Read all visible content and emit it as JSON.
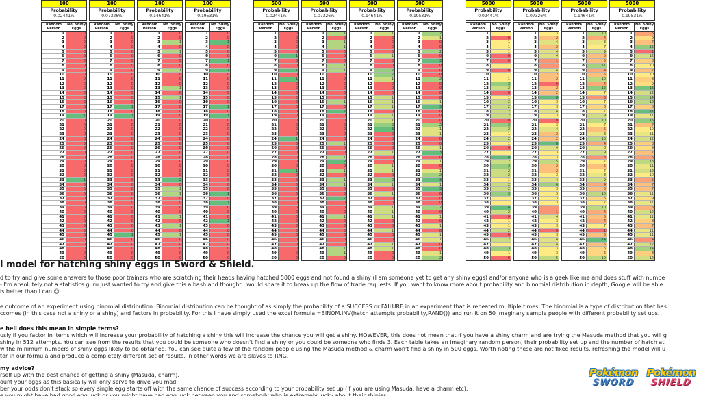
{
  "tables": {
    "probability_label": "Probability",
    "col_headers": [
      "Random Person",
      "No. Shiny Eggs"
    ],
    "scale_colors": {
      "low": "#F8696B",
      "mid": "#FFEB84",
      "high": "#63BE7B"
    },
    "list": [
      {
        "eggs": "100",
        "probability": "0.02441%",
        "values": [
          0,
          0,
          0,
          0,
          0,
          0,
          0,
          0,
          0,
          0,
          0,
          0,
          0,
          0,
          0,
          0,
          0,
          0,
          1,
          0,
          0,
          0,
          0,
          0,
          0,
          0,
          0,
          0,
          0,
          0,
          0,
          0,
          1,
          0,
          0,
          0,
          0,
          0,
          0,
          0,
          0,
          0,
          0,
          0,
          0,
          0,
          0,
          0,
          0,
          0
        ]
      },
      {
        "eggs": "100",
        "probability": "0.07326%",
        "values": [
          0,
          0,
          0,
          0,
          0,
          0,
          0,
          0,
          0,
          0,
          0,
          0,
          0,
          0,
          0,
          0,
          1,
          0,
          1,
          0,
          0,
          0,
          0,
          0,
          0,
          0,
          0,
          0,
          0,
          0,
          0,
          0,
          0,
          0,
          0,
          0,
          0,
          0,
          0,
          0,
          0,
          0,
          0,
          0,
          1,
          0,
          0,
          0,
          0,
          0
        ]
      },
      {
        "eggs": "100",
        "probability": "0.14641%",
        "values": [
          0,
          0,
          1,
          0,
          1,
          0,
          0,
          0,
          1,
          0,
          0,
          0,
          1,
          0,
          1,
          0,
          0,
          0,
          0,
          0,
          0,
          0,
          0,
          0,
          0,
          0,
          0,
          0,
          0,
          0,
          0,
          0,
          2,
          0,
          1,
          1,
          0,
          0,
          0,
          0,
          1,
          0,
          1,
          0,
          1,
          0,
          0,
          0,
          0,
          0
        ]
      },
      {
        "eggs": "100",
        "probability": "0.19531%",
        "values": [
          0,
          0,
          1,
          0,
          0,
          0,
          1,
          0,
          1,
          0,
          0,
          0,
          0,
          0,
          0,
          0,
          1,
          0,
          1,
          0,
          0,
          0,
          0,
          0,
          0,
          0,
          0,
          0,
          0,
          0,
          0,
          0,
          0,
          0,
          0,
          1,
          0,
          1,
          0,
          0,
          0,
          1,
          0,
          0,
          0,
          0,
          0,
          0,
          0,
          0
        ]
      },
      {
        "eggs": "500",
        "probability": "0.02441%",
        "values": [
          0,
          0,
          0,
          0,
          0,
          1,
          0,
          0,
          1,
          0,
          1,
          0,
          0,
          0,
          0,
          0,
          0,
          0,
          0,
          0,
          0,
          0,
          0,
          1,
          0,
          0,
          0,
          0,
          0,
          0,
          1,
          0,
          0,
          0,
          0,
          0,
          0,
          0,
          0,
          0,
          0,
          0,
          0,
          0,
          0,
          0,
          0,
          0,
          0,
          0
        ]
      },
      {
        "eggs": "500",
        "probability": "0.07326%",
        "values": [
          1,
          0,
          1,
          1,
          0,
          0,
          0,
          1,
          1,
          0,
          0,
          0,
          0,
          0,
          0,
          1,
          0,
          2,
          0,
          0,
          0,
          0,
          0,
          0,
          1,
          0,
          0,
          1,
          2,
          0,
          1,
          0,
          1,
          1,
          0,
          0,
          2,
          0,
          0,
          0,
          1,
          0,
          0,
          0,
          0,
          0,
          0,
          1,
          1,
          0
        ]
      },
      {
        "eggs": "500",
        "probability": "0.14641%",
        "values": [
          1,
          0,
          0,
          0,
          0,
          1,
          0,
          0,
          2,
          2,
          1,
          0,
          0,
          0,
          1,
          1,
          1,
          0,
          1,
          1,
          2,
          3,
          0,
          0,
          0,
          0,
          1,
          0,
          0,
          1,
          1,
          0,
          2,
          1,
          0,
          1,
          0,
          0,
          1,
          1,
          1,
          0,
          0,
          1,
          0,
          0,
          1,
          1,
          0,
          0
        ]
      },
      {
        "eggs": "500",
        "probability": "0.19531%",
        "values": [
          2,
          1,
          0,
          0,
          2,
          0,
          3,
          0,
          0,
          0,
          2,
          0,
          0,
          0,
          0,
          1,
          3,
          0,
          0,
          0,
          2,
          1,
          1,
          0,
          0,
          1,
          3,
          0,
          1,
          0,
          1,
          2,
          3,
          1,
          3,
          0,
          0,
          0,
          2,
          0,
          1,
          0,
          1,
          0,
          1,
          1,
          0,
          0,
          1,
          2
        ]
      },
      {
        "eggs": "5000",
        "probability": "0.02441%",
        "values": [
          1,
          0,
          1,
          1,
          1,
          0,
          0,
          1,
          0,
          1,
          1,
          3,
          2,
          0,
          1,
          2,
          2,
          2,
          2,
          0,
          3,
          2,
          1,
          2,
          1,
          0,
          1,
          4,
          2,
          3,
          2,
          2,
          1,
          2,
          2,
          3,
          1,
          1,
          4,
          2,
          0,
          1,
          1,
          2,
          0,
          2,
          1,
          3,
          1,
          0
        ]
      },
      {
        "eggs": "5000",
        "probability": "0.07326%",
        "values": [
          3,
          2,
          4,
          2,
          4,
          4,
          1,
          1,
          4,
          2,
          2,
          0,
          2,
          2,
          8,
          3,
          3,
          4,
          3,
          0,
          3,
          4,
          2,
          2,
          8,
          4,
          3,
          3,
          5,
          2,
          2,
          3,
          4,
          6,
          3,
          3,
          3,
          3,
          1,
          1,
          4,
          3,
          3,
          0,
          3,
          4,
          4,
          3,
          3,
          5
        ]
      },
      {
        "eggs": "5000",
        "probability": "0.14641%",
        "values": [
          10,
          4,
          8,
          7,
          9,
          5,
          5,
          11,
          4,
          5,
          10,
          4,
          12,
          7,
          3,
          7,
          6,
          7,
          9,
          10,
          7,
          5,
          8,
          10,
          4,
          8,
          9,
          3,
          7,
          5,
          7,
          8,
          9,
          4,
          5,
          10,
          6,
          7,
          10,
          4,
          5,
          4,
          7,
          1,
          5,
          14,
          5,
          6,
          6,
          10
        ]
      },
      {
        "eggs": "5000",
        "probability": "0.19531%",
        "values": [
          5,
          9,
          7,
          15,
          1,
          12,
          8,
          10,
          7,
          10,
          8,
          9,
          16,
          12,
          14,
          13,
          8,
          17,
          11,
          15,
          7,
          10,
          11,
          12,
          8,
          9,
          7,
          5,
          13,
          11,
          12,
          10,
          5,
          7,
          7,
          11,
          9,
          11,
          6,
          12,
          11,
          8,
          7,
          11,
          11,
          4,
          12,
          14,
          8,
          12
        ]
      }
    ]
  },
  "article": {
    "title": "l model for hatching shiny eggs in Sword & Shield.",
    "blocks": [
      {
        "type": "p",
        "lines": [
          "d to try and give some answers to those poor trainers who are scratching their heads having hatched 5000 eggs and not found a shiny (I am someone yet to get any shiny eggs) and/or anyone who is a geek like me and does stuff with numbe",
          "- I'm absolutely not a statistics guru just wanted to try and give this a bash and thought I would share it to break up the flow of trade requests. If you want to know more about probability and binomial distribution in depth, Google will be able",
          "is better than I can ☺"
        ]
      },
      {
        "type": "p",
        "lines": [
          "e outcome of an experiment using binomial distribution. Binomial distribution can be thought of as simply the probability of a SUCCESS or FAILURE in an experiment that is repeated multiple times. The binomial is a type of distribution that has",
          "ccomes (in this case not a shiny or a shiny) and factors in probability. For this I have simply used the excel formula =BINOM.INV(hatch attempts,probability,RAND()) and run it on 50 imaginary sample people with different probability set ups."
        ]
      },
      {
        "type": "h",
        "text": "e hell does this mean in simple terms?"
      },
      {
        "type": "p",
        "tight": true,
        "lines": [
          "usly if you factor in items which will increase your probability of hatching a shiny this will increase the chance you will get a shiny. HOWEVER, this does not mean that if you have a shiny charm and are trying the Masuda method that you will g",
          "shiny in 512 attempts. You can see from the results that you could be someone who doesn't find a shiny or you could be someone who finds 3. Each table takes an imaginary random person, their probability set up and the number of hatch at",
          "w the minimum numbers of shiny eggs likely to be obtained. You can see quite a few of the random people using the Masuda method & charm won't find a shiny in 500 eggs. Worth noting these are not fixed results, refreshing the model will u",
          "tor in our formula and produce a completely different set of results, in other words we are slaves to RNG."
        ]
      },
      {
        "type": "h",
        "text": "my advice?"
      },
      {
        "type": "p",
        "lines": [
          "rself up with the best chance of getting a shiny (Masuda, charm).",
          "ount your eggs as this basically will only serve to drive you mad.",
          "ber your odds don't stack so every single egg starts off with the same chance of success according to your probability set up (if you are using Masuda, have a charm etc).",
          "e you might have had good egg luck or you might have bad egg luck between you and somebody who is extremely lucky about their shinies"
        ]
      }
    ]
  },
  "logos": [
    {
      "name": "Pokémon",
      "game": "SWORD"
    },
    {
      "name": "Pokémon",
      "game": "SHIELD"
    }
  ]
}
